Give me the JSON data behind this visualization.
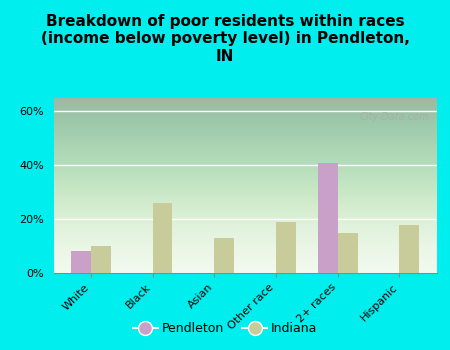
{
  "title": "Breakdown of poor residents within races\n(income below poverty level) in Pendleton,\nIN",
  "categories": [
    "White",
    "Black",
    "Asian",
    "Other race",
    "2+ races",
    "Hispanic"
  ],
  "pendleton_values": [
    8,
    0,
    0,
    0,
    41,
    0
  ],
  "indiana_values": [
    10,
    26,
    13,
    19,
    15,
    18
  ],
  "pendleton_color": "#c8a0c8",
  "indiana_color": "#c8cc9a",
  "background_color": "#00eeee",
  "plot_bg_color": "#e8f2de",
  "ylim": [
    0,
    65
  ],
  "yticks": [
    0,
    20,
    40,
    60
  ],
  "ytick_labels": [
    "0%",
    "20%",
    "40%",
    "60%"
  ],
  "bar_width": 0.32,
  "title_fontsize": 11,
  "legend_labels": [
    "Pendleton",
    "Indiana"
  ],
  "watermark": "City-Data.com"
}
